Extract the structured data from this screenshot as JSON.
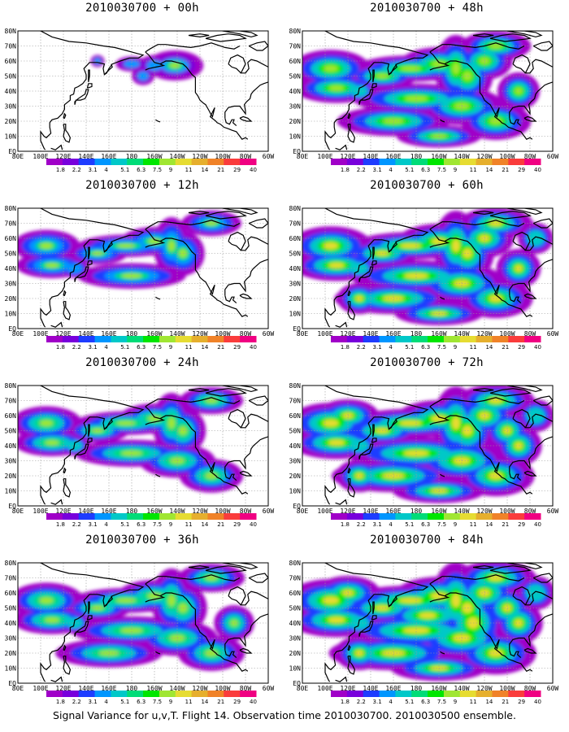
{
  "caption": "Signal Variance for u,v,T. Flight 14. Observation time 2010030700. 2010030500 ensemble.",
  "lat_labels": [
    "80N",
    "70N",
    "60N",
    "50N",
    "40N",
    "30N",
    "20N",
    "10N",
    "EQ"
  ],
  "lon_labels": [
    "80E",
    "100E",
    "120E",
    "140E",
    "160E",
    "180",
    "160W",
    "140W",
    "120W",
    "100W",
    "80W",
    "60W"
  ],
  "legend": {
    "labels": [
      "1.8",
      "2.2",
      "3.1",
      "4",
      "5.1",
      "6.3",
      "7.5",
      "9",
      "11",
      "14",
      "21",
      "29",
      "40"
    ],
    "colors": [
      "#a000c8",
      "#7800dc",
      "#1e3cff",
      "#0096ff",
      "#00c8c8",
      "#00dc78",
      "#00e600",
      "#a0e632",
      "#e6dc32",
      "#e6af2d",
      "#f08228",
      "#fa3c3c",
      "#f00082"
    ]
  },
  "panels": [
    {
      "title": "2010030700 + 00h",
      "col": 0,
      "row": 0,
      "level": 0
    },
    {
      "title": "2010030700 + 12h",
      "col": 0,
      "row": 1,
      "level": 1
    },
    {
      "title": "2010030700 + 24h",
      "col": 0,
      "row": 2,
      "level": 2
    },
    {
      "title": "2010030700 + 36h",
      "col": 0,
      "row": 3,
      "level": 3
    },
    {
      "title": "2010030700 + 48h",
      "col": 1,
      "row": 0,
      "level": 4
    },
    {
      "title": "2010030700 + 60h",
      "col": 1,
      "row": 1,
      "level": 5
    },
    {
      "title": "2010030700 + 72h",
      "col": 1,
      "row": 2,
      "level": 6
    },
    {
      "title": "2010030700 + 84h",
      "col": 1,
      "row": 3,
      "level": 7
    }
  ]
}
